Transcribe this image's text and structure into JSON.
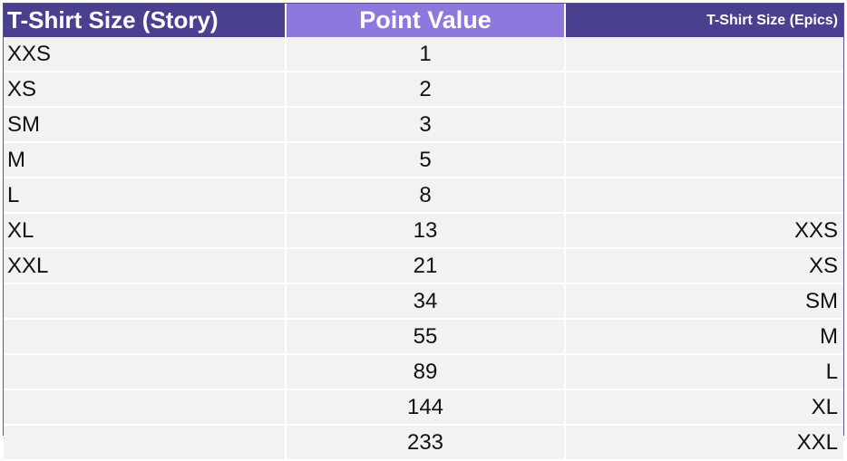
{
  "table": {
    "headers": [
      "T-Shirt Size (Story)",
      "Point Value",
      "T-Shirt Size (Epics)"
    ],
    "rows": [
      [
        "XXS",
        "1",
        ""
      ],
      [
        "XS",
        "2",
        ""
      ],
      [
        "SM",
        "3",
        ""
      ],
      [
        "M",
        "5",
        ""
      ],
      [
        "L",
        "8",
        ""
      ],
      [
        "XL",
        "13",
        "XXS"
      ],
      [
        "XXL",
        "21",
        "XS"
      ],
      [
        "",
        "34",
        "SM"
      ],
      [
        "",
        "55",
        "M"
      ],
      [
        "",
        "89",
        "L"
      ],
      [
        "",
        "144",
        "XL"
      ],
      [
        "",
        "233",
        "XXL"
      ]
    ]
  },
  "colors": {
    "header_dark": "#4a4090",
    "header_light": "#8f78dd",
    "row_background": "#f2f2f2",
    "border": "#5b4ea3"
  }
}
